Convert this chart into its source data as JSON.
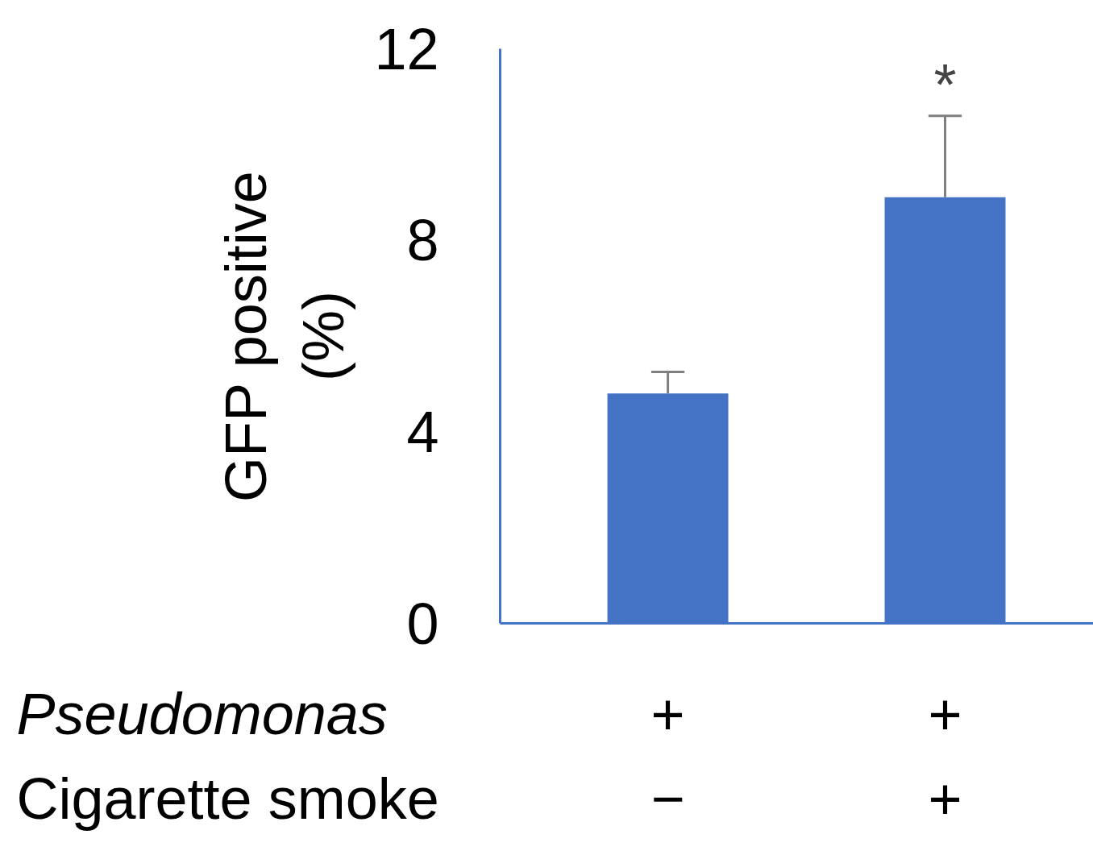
{
  "chart_data": {
    "type": "bar",
    "ylabel": "GFP positive\n(%)",
    "categories": [
      "+\n−",
      "+\n+"
    ],
    "values": [
      4.8,
      8.9
    ],
    "errors": [
      [
        4.8,
        5.25
      ],
      [
        8.9,
        10.6
      ]
    ],
    "color": "#4472c4",
    "ylim": [
      0,
      12
    ],
    "yticks": [
      0,
      4,
      8,
      12
    ],
    "grid": false,
    "annotations": [
      "Pseudomonas",
      "Cigarette smoke",
      "*"
    ]
  }
}
